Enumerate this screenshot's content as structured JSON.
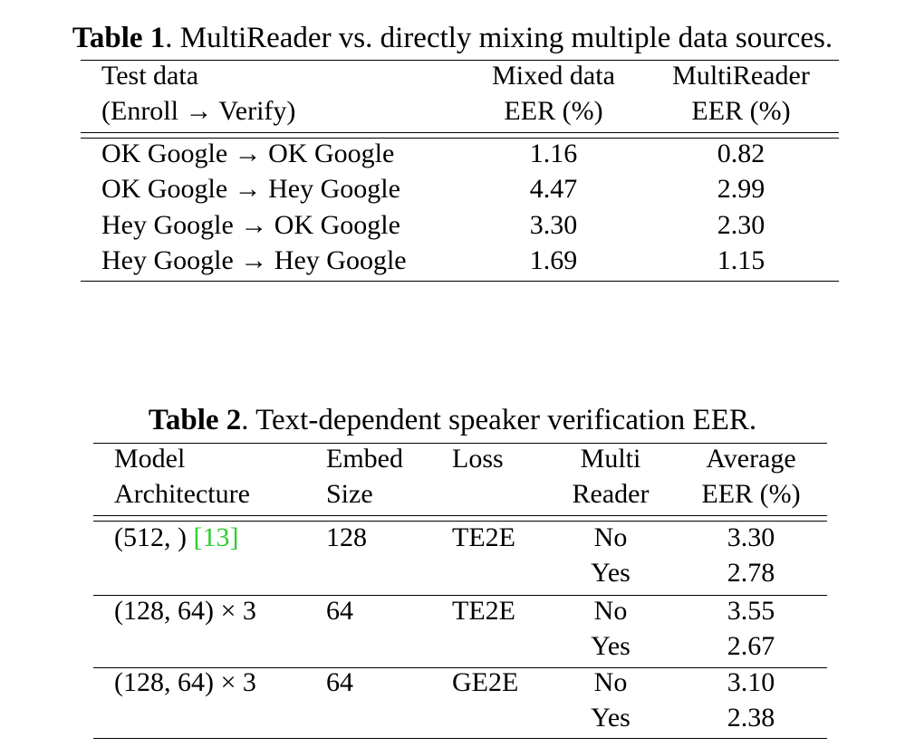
{
  "table1": {
    "label": "Table 1",
    "caption": ". MultiReader vs. directly mixing multiple data sources.",
    "header": {
      "col1_line1": "Test data",
      "col1_line2": "(Enroll → Verify)",
      "col2_line1": "Mixed data",
      "col2_line2": "EER (%)",
      "col3_line1": "MultiReader",
      "col3_line2": "EER (%)"
    },
    "rows": [
      {
        "test": "OK Google → OK Google",
        "mixed": "1.16",
        "multireader": "0.82"
      },
      {
        "test": "OK Google → Hey Google",
        "mixed": "4.47",
        "multireader": "2.99"
      },
      {
        "test": "Hey Google → OK Google",
        "mixed": "3.30",
        "multireader": "2.30"
      },
      {
        "test": "Hey Google → Hey Google",
        "mixed": "1.69",
        "multireader": "1.15"
      }
    ]
  },
  "table2": {
    "label": "Table 2",
    "caption": ". Text-dependent speaker verification EER.",
    "header": {
      "arch_line1": "Model",
      "arch_line2": "Architecture",
      "embed_line1": "Embed",
      "embed_line2": "Size",
      "loss": "Loss",
      "multi_line1": "Multi",
      "multi_line2": "Reader",
      "eer_line1": "Average",
      "eer_line2": "EER (%)"
    },
    "groups": [
      {
        "arch": "(512, ) ",
        "citation": "[13]",
        "embed": "128",
        "loss": "TE2E",
        "rows": [
          {
            "multireader": "No",
            "eer": "3.30"
          },
          {
            "multireader": "Yes",
            "eer": "2.78"
          }
        ]
      },
      {
        "arch": "(128, 64) × 3",
        "citation": "",
        "embed": "64",
        "loss": "TE2E",
        "rows": [
          {
            "multireader": "No",
            "eer": "3.55"
          },
          {
            "multireader": "Yes",
            "eer": "2.67"
          }
        ]
      },
      {
        "arch": "(128, 64) × 3",
        "citation": "",
        "embed": "64",
        "loss": "GE2E",
        "rows": [
          {
            "multireader": "No",
            "eer": "3.10"
          },
          {
            "multireader": "Yes",
            "eer": "2.38"
          }
        ]
      }
    ]
  }
}
